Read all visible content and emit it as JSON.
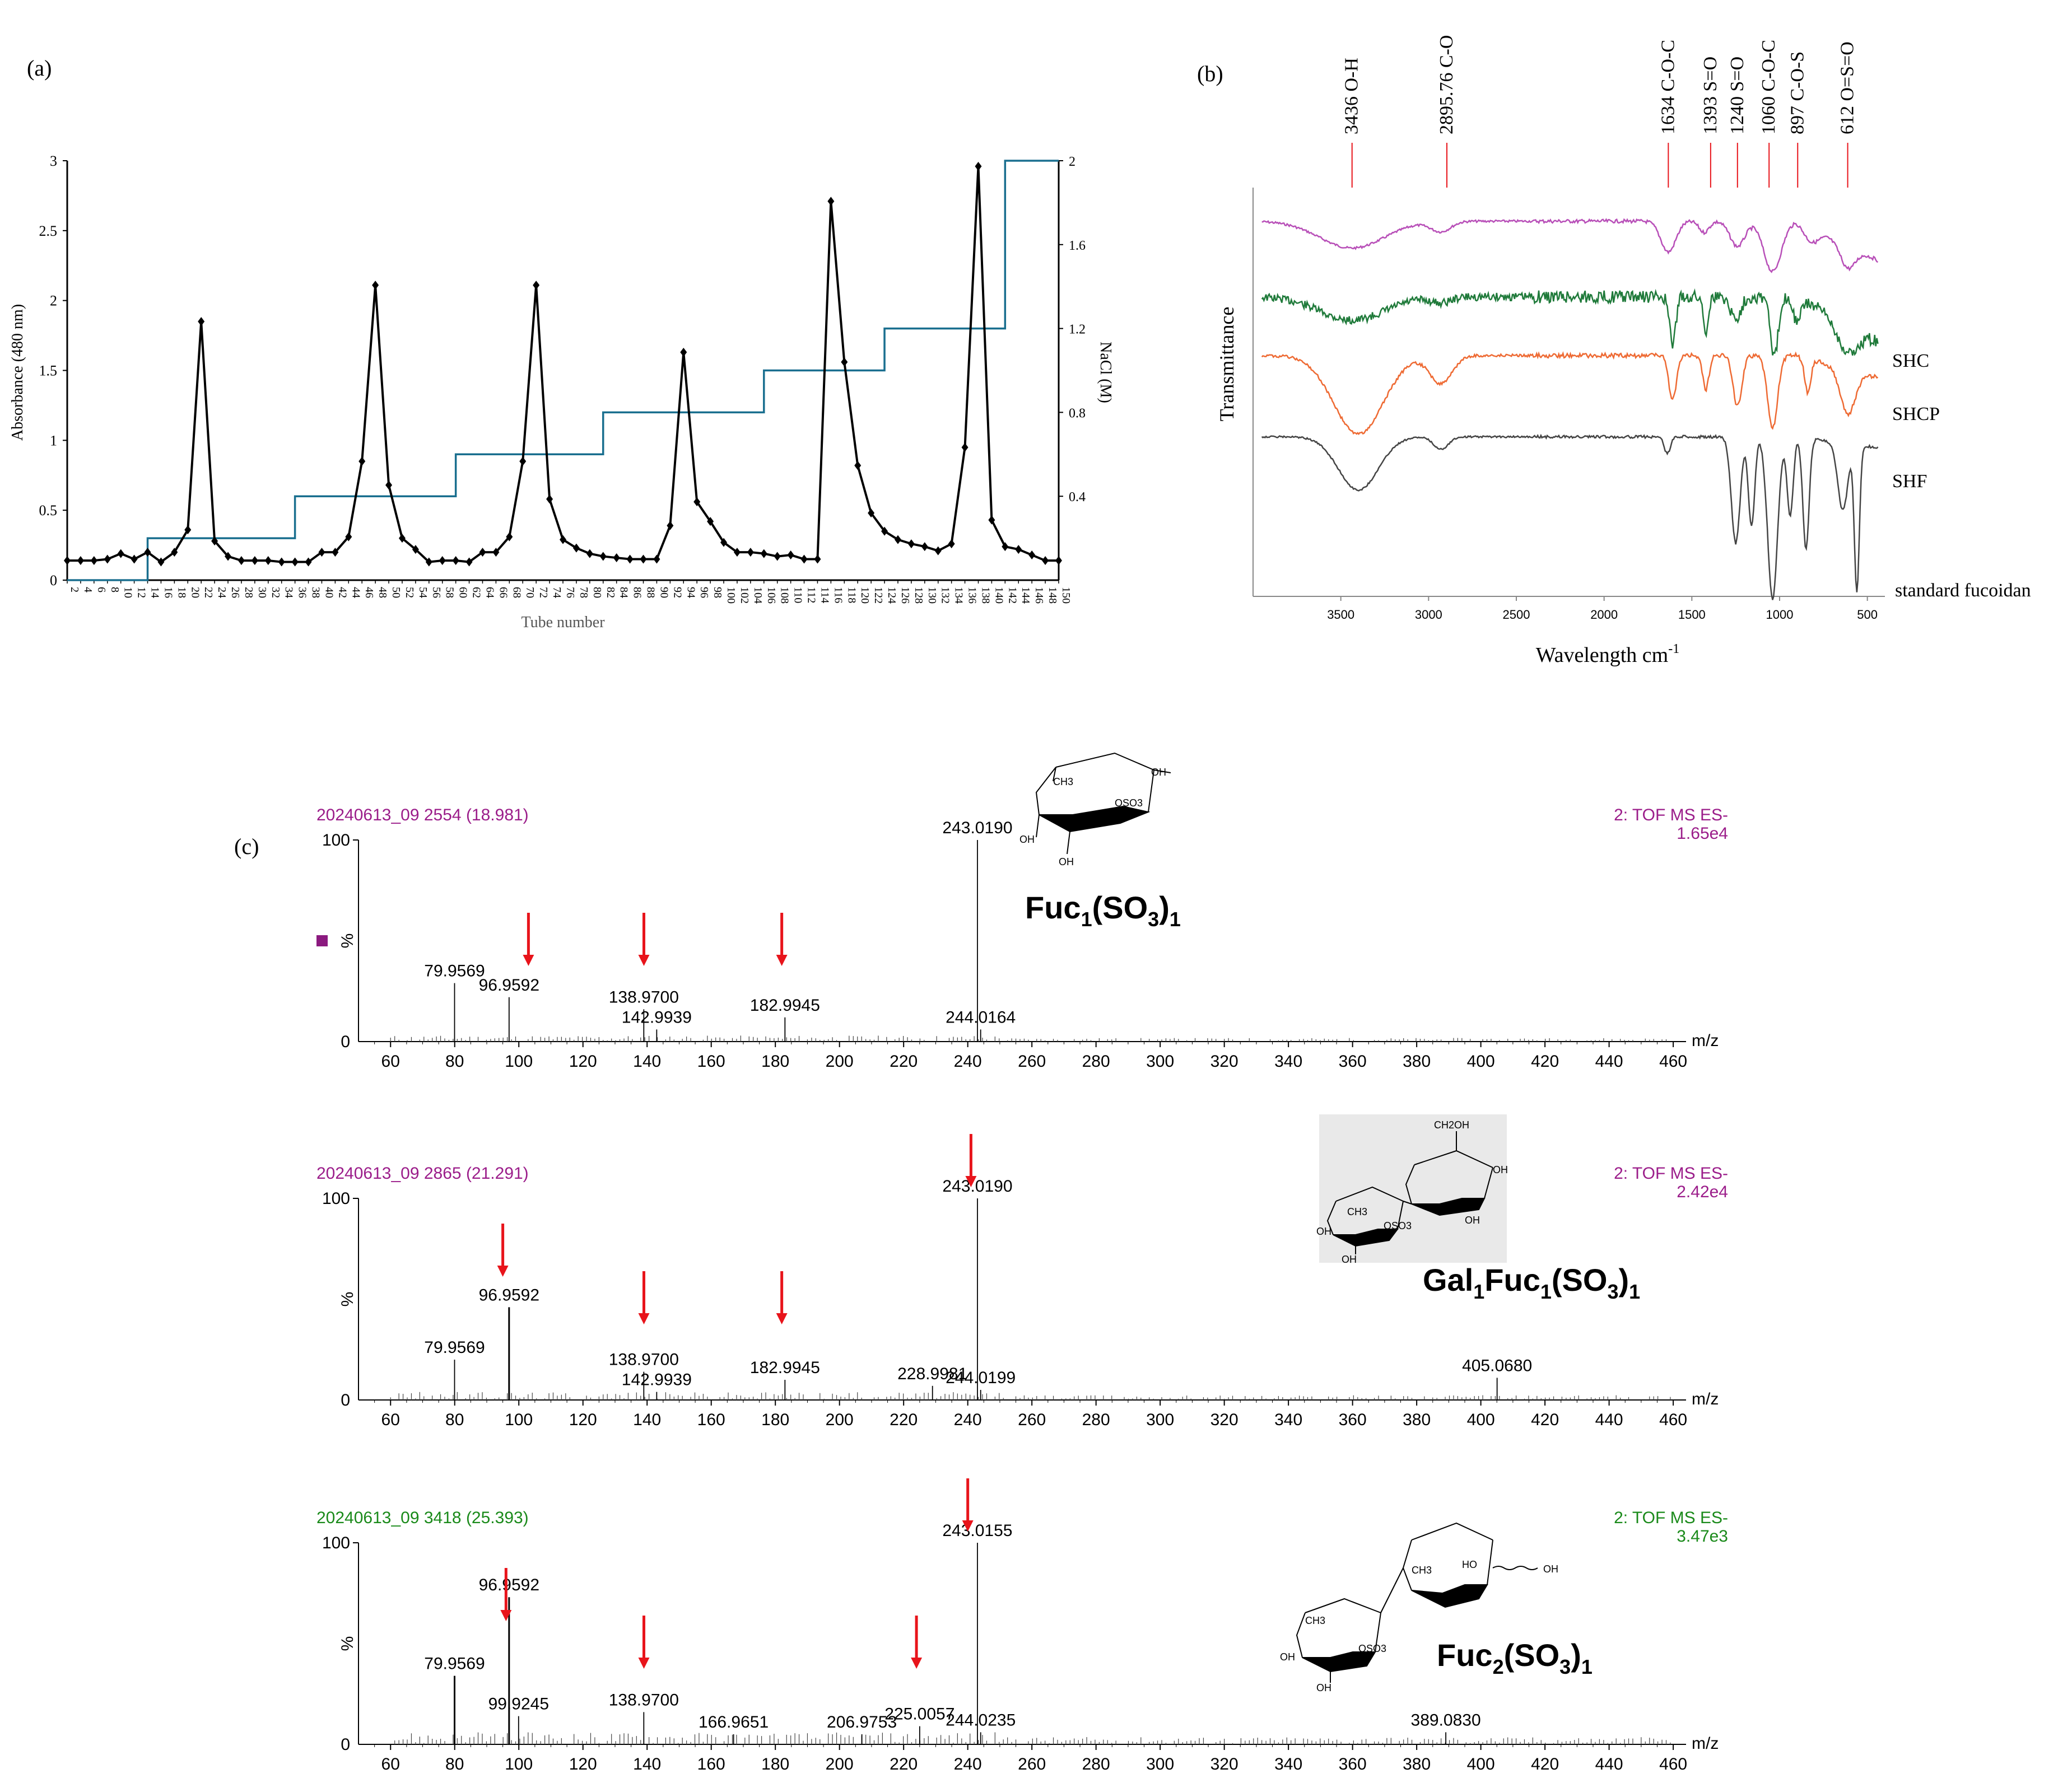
{
  "colors": {
    "black": "#000000",
    "salt_step": "#1a6f8f",
    "ms_header_a": "#9b1d8a",
    "ms_header_b": "#9b1d8a",
    "ms_header_c": "#1a8a1a",
    "arrow": "#e8141b",
    "ftir_shc": "#b84fb8",
    "ftir_shcp": "#1f7a3a",
    "ftir_shf": "#ee6a33",
    "ftir_std": "#444444",
    "label_shc": "#1f4e79",
    "label_shcp": "#222222",
    "label_shf": "#ee6a33",
    "peak_line": "#e8141b"
  },
  "chart_data": [
    {
      "panel": "(a)",
      "type": "line",
      "xlabel": "Tube number",
      "ylabel": "Absorbance (480 nm)",
      "y2label": "NaCl (M)",
      "ylim": [
        0,
        3
      ],
      "y2lim": [
        0,
        2
      ],
      "yticks": [
        "0",
        "0.5",
        "1",
        "1.5",
        "2",
        "2.5",
        "3"
      ],
      "y2ticks": [
        "0.4",
        "0.8",
        "1.2",
        "1.6",
        "2"
      ],
      "x_tick_labels": [
        "2",
        "4",
        "6",
        "8",
        "10",
        "12",
        "14",
        "16",
        "18",
        "20",
        "22",
        "24",
        "26",
        "28",
        "30",
        "32",
        "34",
        "36",
        "38",
        "40",
        "42",
        "44",
        "46",
        "48",
        "50",
        "52",
        "54",
        "56",
        "58",
        "60",
        "62",
        "64",
        "66",
        "68",
        "70",
        "72",
        "74",
        "76",
        "78",
        "80",
        "82",
        "84",
        "86",
        "88",
        "90",
        "92",
        "94",
        "96",
        "98",
        "100",
        "102",
        "104",
        "106",
        "108",
        "110",
        "112",
        "114",
        "116",
        "118",
        "120",
        "122",
        "124",
        "126",
        "128",
        "130",
        "132",
        "134",
        "136",
        "138",
        "140",
        "142",
        "144",
        "146",
        "148",
        "150"
      ],
      "series": [
        {
          "name": "Absorbance",
          "x": [
            2,
            4,
            6,
            8,
            10,
            12,
            14,
            16,
            18,
            20,
            22,
            24,
            26,
            28,
            30,
            32,
            34,
            36,
            38,
            40,
            42,
            44,
            46,
            48,
            50,
            52,
            54,
            56,
            58,
            60,
            62,
            64,
            66,
            68,
            70,
            72,
            74,
            76,
            78,
            80,
            82,
            84,
            86,
            88,
            90,
            92,
            94,
            96,
            98,
            100,
            102,
            104,
            106,
            108,
            110,
            112,
            114,
            116,
            118,
            120,
            122,
            124,
            126,
            128,
            130,
            132,
            134,
            136,
            138,
            140,
            142,
            144,
            146,
            148,
            150
          ],
          "values": [
            0.14,
            0.14,
            0.14,
            0.15,
            0.19,
            0.15,
            0.2,
            0.13,
            0.2,
            0.36,
            1.85,
            0.28,
            0.17,
            0.14,
            0.14,
            0.14,
            0.13,
            0.13,
            0.13,
            0.2,
            0.2,
            0.31,
            0.85,
            2.11,
            0.68,
            0.3,
            0.22,
            0.13,
            0.14,
            0.14,
            0.13,
            0.2,
            0.2,
            0.31,
            0.85,
            2.11,
            0.58,
            0.29,
            0.23,
            0.19,
            0.17,
            0.16,
            0.15,
            0.15,
            0.15,
            0.39,
            1.63,
            0.56,
            0.42,
            0.27,
            0.2,
            0.2,
            0.19,
            0.17,
            0.18,
            0.15,
            0.15,
            2.71,
            1.56,
            0.82,
            0.48,
            0.35,
            0.29,
            0.26,
            0.24,
            0.21,
            0.26,
            0.95,
            2.96,
            0.43,
            0.24,
            0.22,
            0.18,
            0.14,
            0.14
          ]
        },
        {
          "name": "NaCl",
          "type": "step",
          "x": [
            2,
            14,
            14,
            36,
            36,
            60,
            60,
            82,
            82,
            106,
            106,
            124,
            124,
            142,
            142,
            150
          ],
          "values": [
            0,
            0,
            0.2,
            0.2,
            0.4,
            0.4,
            0.6,
            0.6,
            0.8,
            0.8,
            1.0,
            1.0,
            1.2,
            1.2,
            2.0,
            2.0
          ]
        }
      ]
    },
    {
      "panel": "(b)",
      "type": "line",
      "xlabel": "Wavelength cm",
      "xlabel_sup": "-1",
      "ylabel": "Transmittance",
      "xlim": [
        4000,
        400
      ],
      "x_tick_labels": [
        "3500",
        "3000",
        "2500",
        "2000",
        "1500",
        "1000",
        "500"
      ],
      "series_names": [
        "SHC",
        "SHCP",
        "SHF",
        "standard fucoidan"
      ],
      "peak_labels": [
        "3436 O-H",
        "2895.76 C-O",
        "1634 C-O-C",
        "1393   S=O",
        "1240   S=O",
        "1060  C-O-C",
        "897 C-O-S",
        "612 O=S=O"
      ],
      "peak_positions": [
        3436,
        2895.76,
        1634,
        1393,
        1240,
        1060,
        897,
        612
      ]
    },
    {
      "panel": "(c)",
      "type": "bar",
      "xlabel": "m/z",
      "ylabel": "%",
      "xlim": [
        50,
        465
      ],
      "x_tick_labels": [
        "60",
        "80",
        "100",
        "120",
        "140",
        "160",
        "180",
        "200",
        "220",
        "240",
        "260",
        "280",
        "300",
        "320",
        "340",
        "360",
        "380",
        "400",
        "420",
        "440",
        "460"
      ],
      "spectra": [
        {
          "header_left": "20240613_09 2554 (18.981)",
          "header_right_1": "2: TOF MS ES-",
          "header_right_2": "1.65e4",
          "y_top": "100",
          "y_zero": "0",
          "compound_main": "Fuc",
          "compound_sub1": "1",
          "compound_mid": "(SO",
          "compound_sub2": "3",
          "compound_close": ")",
          "compound_sub3": "1",
          "peaks": [
            {
              "mz": 79.9569,
              "rel": 29,
              "label": "79.9569"
            },
            {
              "mz": 96.9592,
              "rel": 22,
              "label": "96.9592"
            },
            {
              "mz": 138.97,
              "rel": 16,
              "label": "138.9700"
            },
            {
              "mz": 142.9939,
              "rel": 6,
              "label": "142.9939"
            },
            {
              "mz": 182.9945,
              "rel": 12,
              "label": "182.9945"
            },
            {
              "mz": 243.019,
              "rel": 100,
              "label": "243.0190"
            },
            {
              "mz": 244.0164,
              "rel": 6,
              "label": "244.0164"
            }
          ],
          "arrows_mz": [
            103,
            139,
            182
          ]
        },
        {
          "header_left": "20240613_09 2865 (21.291)",
          "header_right_1": "2: TOF MS ES-",
          "header_right_2": "2.42e4",
          "y_top": "100",
          "y_zero": "0",
          "compound_main": "Gal",
          "compound_sub1": "1",
          "compound_mid": "Fuc",
          "compound_sub2": "1",
          "compound_mid2": "(SO",
          "compound_sub3": "3",
          "compound_close": ")",
          "compound_sub4": "1",
          "peaks": [
            {
              "mz": 79.9569,
              "rel": 20,
              "label": "79.9569"
            },
            {
              "mz": 96.9592,
              "rel": 46,
              "label": "96.9592"
            },
            {
              "mz": 138.97,
              "rel": 14,
              "label": "138.9700"
            },
            {
              "mz": 142.9939,
              "rel": 4,
              "label": "142.9939"
            },
            {
              "mz": 182.9945,
              "rel": 10,
              "label": "182.9945"
            },
            {
              "mz": 228.9981,
              "rel": 7,
              "label": "228.9981"
            },
            {
              "mz": 243.019,
              "rel": 100,
              "label": "243.0190"
            },
            {
              "mz": 244.0199,
              "rel": 5,
              "label": "244.0199"
            },
            {
              "mz": 405.068,
              "rel": 11,
              "label": "405.0680"
            }
          ],
          "arrows_mz": [
            95,
            139,
            182,
            241
          ]
        },
        {
          "header_left": "20240613_09 3418 (25.393)",
          "header_right_1": "2: TOF MS ES-",
          "header_right_2": "3.47e3",
          "y_top": "100",
          "y_zero": "0",
          "compound_main": "Fuc",
          "compound_sub1": "2",
          "compound_mid": "(SO",
          "compound_sub2": "3",
          "compound_close": ")",
          "compound_sub3": "1",
          "peaks": [
            {
              "mz": 79.9569,
              "rel": 34,
              "label": "79.9569"
            },
            {
              "mz": 96.9592,
              "rel": 73,
              "label": "96.9592"
            },
            {
              "mz": 99.9245,
              "rel": 14,
              "label": "99.9245"
            },
            {
              "mz": 138.97,
              "rel": 16,
              "label": "138.9700"
            },
            {
              "mz": 166.9651,
              "rel": 5,
              "label": "166.9651"
            },
            {
              "mz": 206.9753,
              "rel": 5,
              "label": "206.9753"
            },
            {
              "mz": 225.0057,
              "rel": 9,
              "label": "225.0057"
            },
            {
              "mz": 243.0155,
              "rel": 100,
              "label": "243.0155"
            },
            {
              "mz": 244.0235,
              "rel": 6,
              "label": "244.0235"
            },
            {
              "mz": 389.083,
              "rel": 6,
              "label": "389.0830"
            }
          ],
          "arrows_mz": [
            96,
            139,
            224,
            240
          ]
        }
      ]
    }
  ],
  "panel_labels": [
    "(a)",
    "(b)",
    "(c)"
  ],
  "structure_labels": {
    "fuc_ch3": "CH3",
    "oso3": "OSO3",
    "oh": "OH",
    "ch2oh": "CH2OH",
    "ho": "HO"
  }
}
